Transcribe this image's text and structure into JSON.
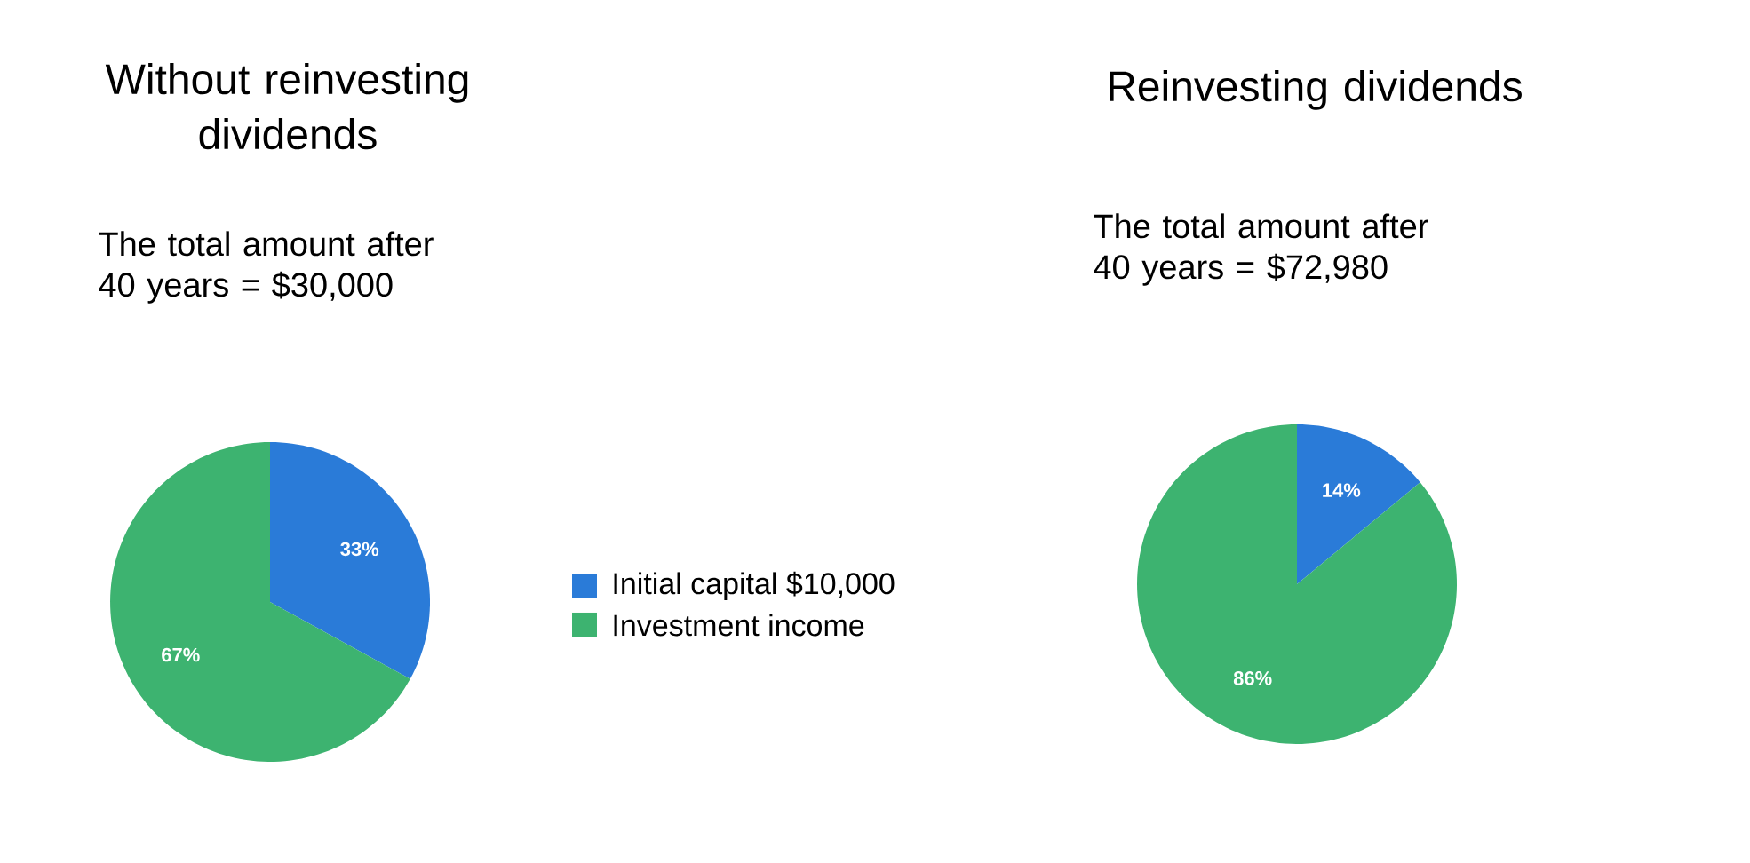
{
  "chart_data": [
    {
      "type": "pie",
      "title": "Without reinvesting dividends",
      "subtitle": "The total amount after 40 years = $30,000",
      "categories": [
        "Initial capital $10,000",
        "Investment income"
      ],
      "values": [
        33,
        67
      ],
      "value_labels": [
        "33%",
        "67%"
      ],
      "colors": [
        "#2a7bd8",
        "#3db370"
      ],
      "legend": "right"
    },
    {
      "type": "pie",
      "title": "Reinvesting dividends",
      "subtitle": "The total amount after 40 years = $72,980",
      "categories": [
        null,
        null
      ],
      "values": [
        14,
        86
      ],
      "value_labels": [
        "14%",
        "86%"
      ],
      "colors": [
        "#2a7bd8",
        "#3db370"
      ]
    }
  ]
}
